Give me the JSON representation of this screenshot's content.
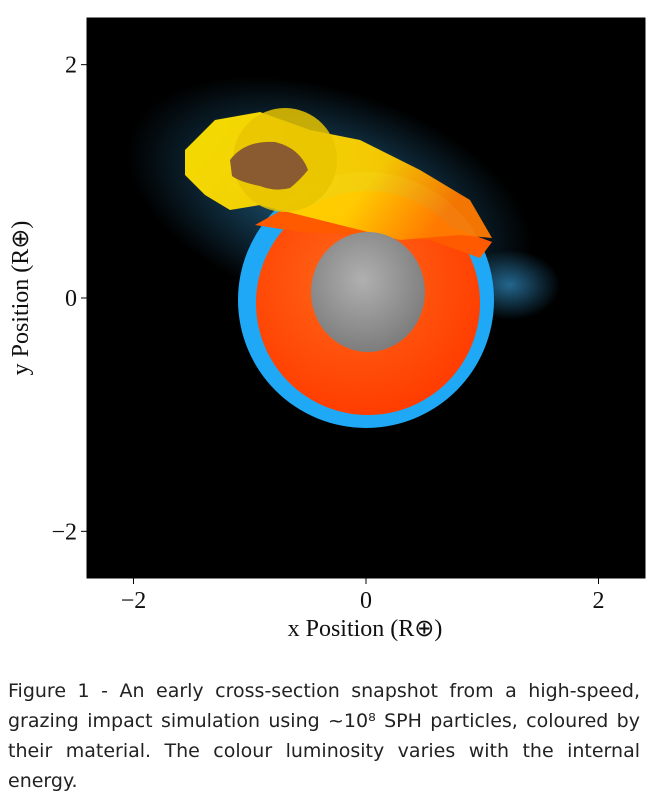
{
  "chart_data": {
    "type": "image",
    "xlabel": "x Position (R⊕)",
    "ylabel": "y Position (R⊕)",
    "xlim": [
      -2.4,
      2.4
    ],
    "ylim": [
      -2.4,
      2.4
    ],
    "xticks": [
      {
        "value": -2,
        "label": "−2"
      },
      0,
      2
    ],
    "yticks": [
      {
        "value": -2,
        "label": "−2"
      },
      0,
      2
    ]
  },
  "caption": "Figure 1 - An early cross-section snapshot from a high-speed, grazing impact simulation using ~10⁸ SPH particles, coloured by their material. The colour luminosity varies with the internal energy."
}
